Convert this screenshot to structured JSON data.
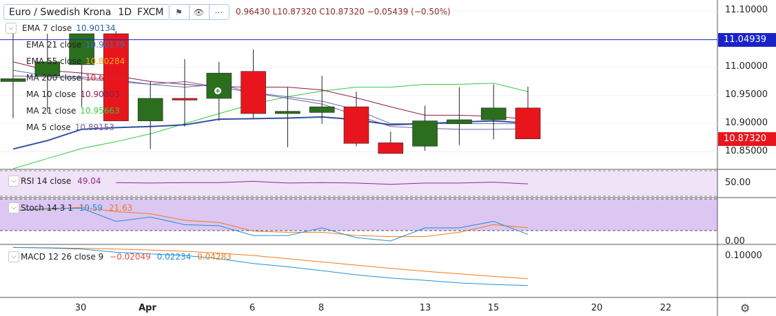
{
  "header": {
    "symbol": "Euro / Swedish Krona",
    "interval": "1D",
    "exchange": "FXCM",
    "ohlc_text": "0.96430  L10.87320  C10.87320  −0.05439 (−0.50%)"
  },
  "legend": [
    {
      "label": "EMA 7 close",
      "value": "10.90134",
      "color": "#2f5fa8"
    },
    {
      "label": "EMA 21 close",
      "value": "10.90179",
      "color": "#3b6fc0"
    },
    {
      "label": "EMA 55 close",
      "value": "10.80284",
      "color": "#f5a623"
    },
    {
      "label": "MA 200 close",
      "value": "10.67064",
      "color": "#e02020"
    },
    {
      "label": "MA 10 close",
      "value": "10.90803",
      "color": "#8b1a4a"
    },
    {
      "label": "MA 21 close",
      "value": "10.95663",
      "color": "#2ecc40"
    },
    {
      "label": "MA 5 close",
      "value": "10.89153",
      "color": "#7a5aa0"
    }
  ],
  "price_tags": [
    {
      "text": "11.04939",
      "color": "#1a23c8",
      "price": 11.04939
    },
    {
      "text": "10.87320",
      "color": "#e8161c",
      "price": 10.8732
    }
  ],
  "indicators": {
    "rsi": {
      "label": "RSI 14 close",
      "value": "49.04",
      "value_color": "#8e2a9a"
    },
    "stoch": {
      "label": "Stoch 14 3 1",
      "values": [
        "10.59",
        "21.63"
      ],
      "colors": [
        "#1e90d8",
        "#f07a1a"
      ]
    },
    "macd": {
      "label": "MACD 12 26 close 9",
      "values": [
        "−0.02049",
        "0.02234",
        "0.04283"
      ],
      "colors": [
        "#e05050",
        "#1e90d8",
        "#f07a1a"
      ]
    }
  },
  "axis": {
    "price_ticks": [
      "11.10000",
      "11.00000",
      "10.95000",
      "10.90000",
      "10.85000"
    ],
    "price_tick_values": [
      11.1,
      11.0,
      10.95,
      10.9,
      10.85
    ],
    "rsi_tick": "50.00",
    "stoch_tick": "0.00",
    "macd_tick": "0.10000",
    "x_labels": [
      "30",
      "Apr",
      "6",
      "8",
      "13",
      "15",
      "20",
      "22"
    ]
  },
  "chart_data": {
    "type": "candlestick",
    "price_range": [
      10.82,
      11.12
    ],
    "candles": [
      {
        "o": 10.975,
        "h": 11.06,
        "l": 10.91,
        "c": 10.98
      },
      {
        "o": 10.985,
        "h": 11.06,
        "l": 10.92,
        "c": 11.01
      },
      {
        "o": 11.005,
        "h": 11.06,
        "l": 10.93,
        "c": 11.06
      },
      {
        "o": 11.06,
        "h": 11.065,
        "l": 10.905,
        "c": 10.905
      },
      {
        "o": 10.905,
        "h": 10.975,
        "l": 10.855,
        "c": 10.945
      },
      {
        "o": 10.945,
        "h": 11.015,
        "l": 10.895,
        "c": 10.942
      },
      {
        "o": 10.945,
        "h": 11.01,
        "l": 10.905,
        "c": 10.99
      },
      {
        "o": 10.993,
        "h": 11.032,
        "l": 10.91,
        "c": 10.918
      },
      {
        "o": 10.918,
        "h": 10.965,
        "l": 10.858,
        "c": 10.922
      },
      {
        "o": 10.92,
        "h": 10.985,
        "l": 10.9,
        "c": 10.93
      },
      {
        "o": 10.93,
        "h": 10.957,
        "l": 10.86,
        "c": 10.865
      },
      {
        "o": 10.866,
        "h": 10.886,
        "l": 10.847,
        "c": 10.847
      },
      {
        "o": 10.86,
        "h": 10.932,
        "l": 10.852,
        "c": 10.905
      },
      {
        "o": 10.9,
        "h": 10.965,
        "l": 10.862,
        "c": 10.907
      },
      {
        "o": 10.907,
        "h": 10.97,
        "l": 10.872,
        "c": 10.928
      },
      {
        "o": 10.928,
        "h": 10.966,
        "l": 10.873,
        "c": 10.873
      }
    ],
    "ema_7": [
      10.855,
      10.87,
      10.89,
      10.893,
      10.895,
      10.898,
      10.908,
      10.909,
      10.91,
      10.912,
      10.907,
      10.898,
      10.9,
      10.903,
      10.905,
      10.901
    ],
    "ema_21": [
      10.93,
      10.915,
      10.91,
      10.9,
      10.898,
      10.9,
      10.905,
      10.905,
      10.906,
      10.907,
      10.902,
      10.895,
      10.898,
      10.9,
      10.902,
      10.902
    ],
    "ma_5": [
      10.985,
      10.983,
      10.98,
      10.975,
      10.97,
      10.975,
      10.965,
      10.955,
      10.945,
      10.935,
      10.915,
      10.895,
      10.892,
      10.89,
      10.89,
      10.891
    ],
    "ma_10": [
      11.01,
      10.995,
      10.99,
      10.985,
      10.975,
      10.97,
      10.966,
      10.965,
      10.965,
      10.96,
      10.946,
      10.93,
      10.915,
      10.915,
      10.913,
      10.908
    ],
    "ma_21": [
      10.82,
      10.838,
      10.856,
      10.868,
      10.882,
      10.9,
      10.918,
      10.935,
      10.948,
      10.958,
      10.965,
      10.965,
      10.97,
      10.97,
      10.972,
      10.957
    ],
    "ma_10b": [
      10.995,
      10.985,
      10.983,
      10.978,
      10.97,
      10.965,
      10.97,
      10.955,
      10.948,
      10.94,
      10.925,
      10.9,
      10.9,
      10.9,
      10.9,
      10.9
    ],
    "rsi_14": [
      null,
      null,
      null,
      52,
      51,
      52,
      52,
      55,
      51,
      52,
      51,
      48,
      51,
      51,
      53,
      49
    ],
    "rsi_range": [
      20,
      80
    ],
    "stoch_k": [
      28,
      30,
      30,
      18,
      22,
      15,
      14,
      5,
      5,
      12,
      3,
      0,
      12,
      12,
      18,
      6
    ],
    "stoch_d": [
      28,
      29,
      31,
      27,
      25,
      19,
      17,
      9,
      8,
      8,
      5,
      4,
      4,
      8,
      15,
      12
    ],
    "stoch_range": [
      0,
      38
    ],
    "macd_line": [
      0.14,
      0.138,
      0.135,
      0.125,
      0.12,
      0.115,
      0.105,
      0.09,
      0.08,
      0.068,
      0.055,
      0.045,
      0.038,
      0.03,
      0.025,
      0.022
    ],
    "macd_signal": [
      0.14,
      0.139,
      0.137,
      0.135,
      0.132,
      0.128,
      0.122,
      0.115,
      0.105,
      0.095,
      0.085,
      0.075,
      0.066,
      0.058,
      0.05,
      0.043
    ],
    "macd_range": [
      0.0,
      0.145
    ]
  },
  "colors": {
    "up": "#2a6e1e",
    "down": "#e8161c",
    "rsi": "#8e2a9a",
    "rsi_band": "#f0e0f8",
    "stoch_band": "#dcc4f2"
  }
}
